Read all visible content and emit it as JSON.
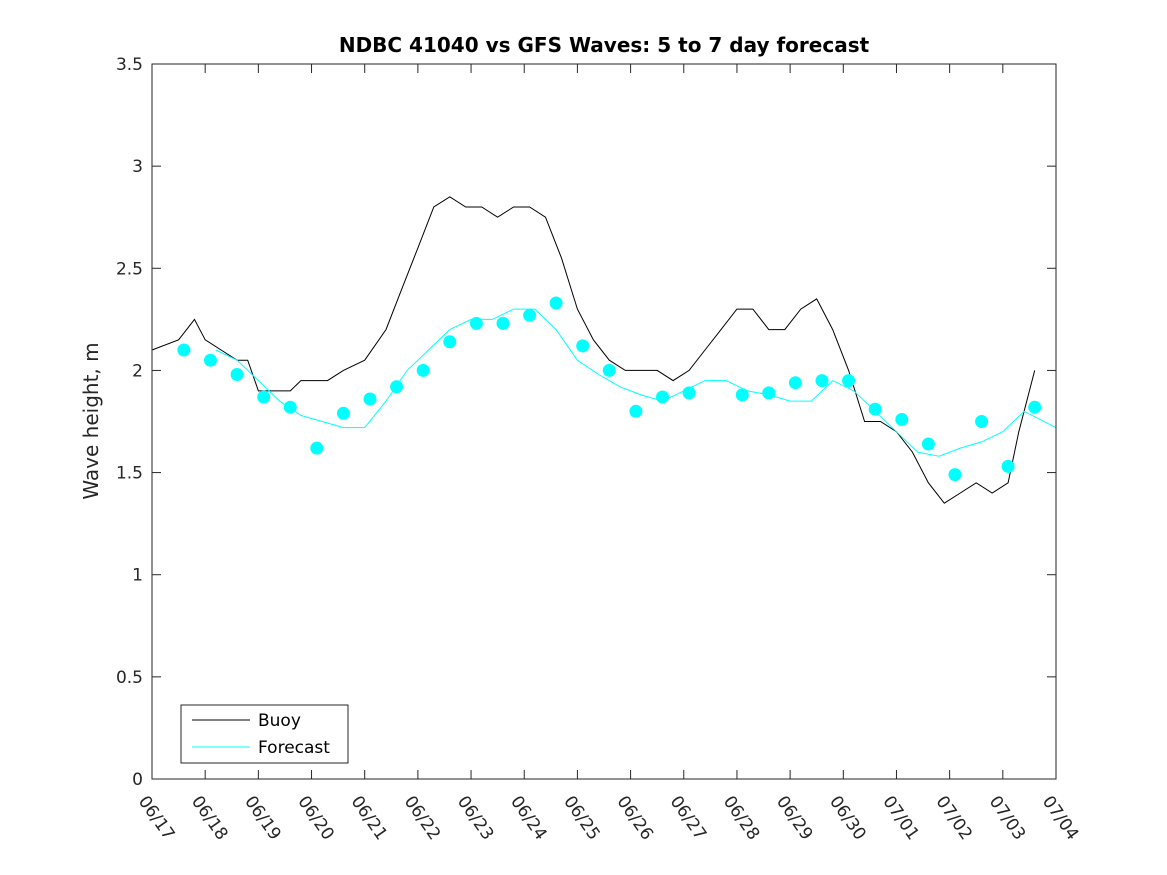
{
  "chart_data": {
    "type": "line",
    "title": "NDBC 41040 vs GFS Waves: 5 to 7 day forecast",
    "ylabel": "Wave height, m",
    "xlabel": "",
    "xlim": [
      0,
      17
    ],
    "ylim": [
      0,
      3.5
    ],
    "yticks": [
      "0",
      "0.5",
      "1",
      "1.5",
      "2",
      "2.5",
      "3",
      "3.5"
    ],
    "xticks": [
      "06/17",
      "06/18",
      "06/19",
      "06/20",
      "06/21",
      "06/22",
      "06/23",
      "06/24",
      "06/25",
      "06/26",
      "06/27",
      "06/28",
      "06/29",
      "06/30",
      "07/01",
      "07/02",
      "07/03",
      "07/04"
    ],
    "legend": {
      "position": "bottom-left",
      "entries": [
        "Buoy",
        "Forecast"
      ]
    },
    "colors": {
      "buoy": "#000000",
      "forecast": "#00ffff",
      "axes": "#262626"
    },
    "series": [
      {
        "name": "Buoy",
        "kind": "line",
        "points": [
          [
            0,
            2.1
          ],
          [
            0.5,
            2.15
          ],
          [
            0.8,
            2.25
          ],
          [
            1.0,
            2.15
          ],
          [
            1.3,
            2.1
          ],
          [
            1.6,
            2.05
          ],
          [
            1.8,
            2.05
          ],
          [
            2.0,
            1.9
          ],
          [
            2.3,
            1.9
          ],
          [
            2.6,
            1.9
          ],
          [
            2.8,
            1.95
          ],
          [
            3.0,
            1.95
          ],
          [
            3.3,
            1.95
          ],
          [
            3.6,
            2.0
          ],
          [
            4.0,
            2.05
          ],
          [
            4.4,
            2.2
          ],
          [
            4.7,
            2.4
          ],
          [
            5.0,
            2.6
          ],
          [
            5.3,
            2.8
          ],
          [
            5.6,
            2.85
          ],
          [
            5.9,
            2.8
          ],
          [
            6.2,
            2.8
          ],
          [
            6.5,
            2.75
          ],
          [
            6.8,
            2.8
          ],
          [
            7.1,
            2.8
          ],
          [
            7.4,
            2.75
          ],
          [
            7.7,
            2.55
          ],
          [
            8.0,
            2.3
          ],
          [
            8.3,
            2.15
          ],
          [
            8.6,
            2.05
          ],
          [
            8.9,
            2.0
          ],
          [
            9.2,
            2.0
          ],
          [
            9.5,
            2.0
          ],
          [
            9.8,
            1.95
          ],
          [
            10.1,
            2.0
          ],
          [
            10.4,
            2.1
          ],
          [
            10.7,
            2.2
          ],
          [
            11.0,
            2.3
          ],
          [
            11.3,
            2.3
          ],
          [
            11.6,
            2.2
          ],
          [
            11.9,
            2.2
          ],
          [
            12.2,
            2.3
          ],
          [
            12.5,
            2.35
          ],
          [
            12.8,
            2.2
          ],
          [
            13.1,
            2.0
          ],
          [
            13.4,
            1.75
          ],
          [
            13.7,
            1.75
          ],
          [
            14.0,
            1.7
          ],
          [
            14.3,
            1.6
          ],
          [
            14.6,
            1.45
          ],
          [
            14.9,
            1.35
          ],
          [
            15.2,
            1.4
          ],
          [
            15.5,
            1.45
          ],
          [
            15.8,
            1.4
          ],
          [
            16.1,
            1.45
          ],
          [
            16.3,
            1.7
          ],
          [
            16.5,
            1.9
          ],
          [
            16.6,
            2.0
          ]
        ]
      },
      {
        "name": "Forecast",
        "kind": "line",
        "points": [
          [
            1.2,
            2.1
          ],
          [
            1.6,
            2.05
          ],
          [
            2.0,
            1.95
          ],
          [
            2.4,
            1.85
          ],
          [
            2.8,
            1.78
          ],
          [
            3.2,
            1.75
          ],
          [
            3.6,
            1.72
          ],
          [
            4.0,
            1.72
          ],
          [
            4.4,
            1.85
          ],
          [
            4.8,
            2.0
          ],
          [
            5.2,
            2.1
          ],
          [
            5.6,
            2.2
          ],
          [
            6.0,
            2.25
          ],
          [
            6.4,
            2.25
          ],
          [
            6.8,
            2.3
          ],
          [
            7.2,
            2.3
          ],
          [
            7.6,
            2.2
          ],
          [
            8.0,
            2.05
          ],
          [
            8.4,
            1.98
          ],
          [
            8.8,
            1.92
          ],
          [
            9.2,
            1.88
          ],
          [
            9.6,
            1.85
          ],
          [
            10.0,
            1.9
          ],
          [
            10.4,
            1.95
          ],
          [
            10.8,
            1.95
          ],
          [
            11.2,
            1.9
          ],
          [
            11.6,
            1.88
          ],
          [
            12.0,
            1.85
          ],
          [
            12.4,
            1.85
          ],
          [
            12.8,
            1.95
          ],
          [
            13.2,
            1.9
          ],
          [
            13.6,
            1.8
          ],
          [
            14.0,
            1.7
          ],
          [
            14.4,
            1.6
          ],
          [
            14.8,
            1.58
          ],
          [
            15.2,
            1.62
          ],
          [
            15.6,
            1.65
          ],
          [
            16.0,
            1.7
          ],
          [
            16.4,
            1.8
          ],
          [
            17.0,
            1.72
          ]
        ]
      },
      {
        "name": "Forecast",
        "kind": "markers",
        "points": [
          [
            0.6,
            2.1
          ],
          [
            1.1,
            2.05
          ],
          [
            1.6,
            1.98
          ],
          [
            2.1,
            1.87
          ],
          [
            2.6,
            1.82
          ],
          [
            3.1,
            1.62
          ],
          [
            3.6,
            1.79
          ],
          [
            4.1,
            1.86
          ],
          [
            4.6,
            1.92
          ],
          [
            5.1,
            2.0
          ],
          [
            5.6,
            2.14
          ],
          [
            6.1,
            2.23
          ],
          [
            6.6,
            2.23
          ],
          [
            7.1,
            2.27
          ],
          [
            7.6,
            2.33
          ],
          [
            8.1,
            2.12
          ],
          [
            8.6,
            2.0
          ],
          [
            9.1,
            1.8
          ],
          [
            9.6,
            1.87
          ],
          [
            10.1,
            1.89
          ],
          [
            11.1,
            1.88
          ],
          [
            11.6,
            1.89
          ],
          [
            12.1,
            1.94
          ],
          [
            12.6,
            1.95
          ],
          [
            13.1,
            1.95
          ],
          [
            13.6,
            1.81
          ],
          [
            14.1,
            1.76
          ],
          [
            14.6,
            1.64
          ],
          [
            15.1,
            1.49
          ],
          [
            15.6,
            1.75
          ],
          [
            16.1,
            1.53
          ],
          [
            16.6,
            1.82
          ]
        ]
      }
    ]
  }
}
